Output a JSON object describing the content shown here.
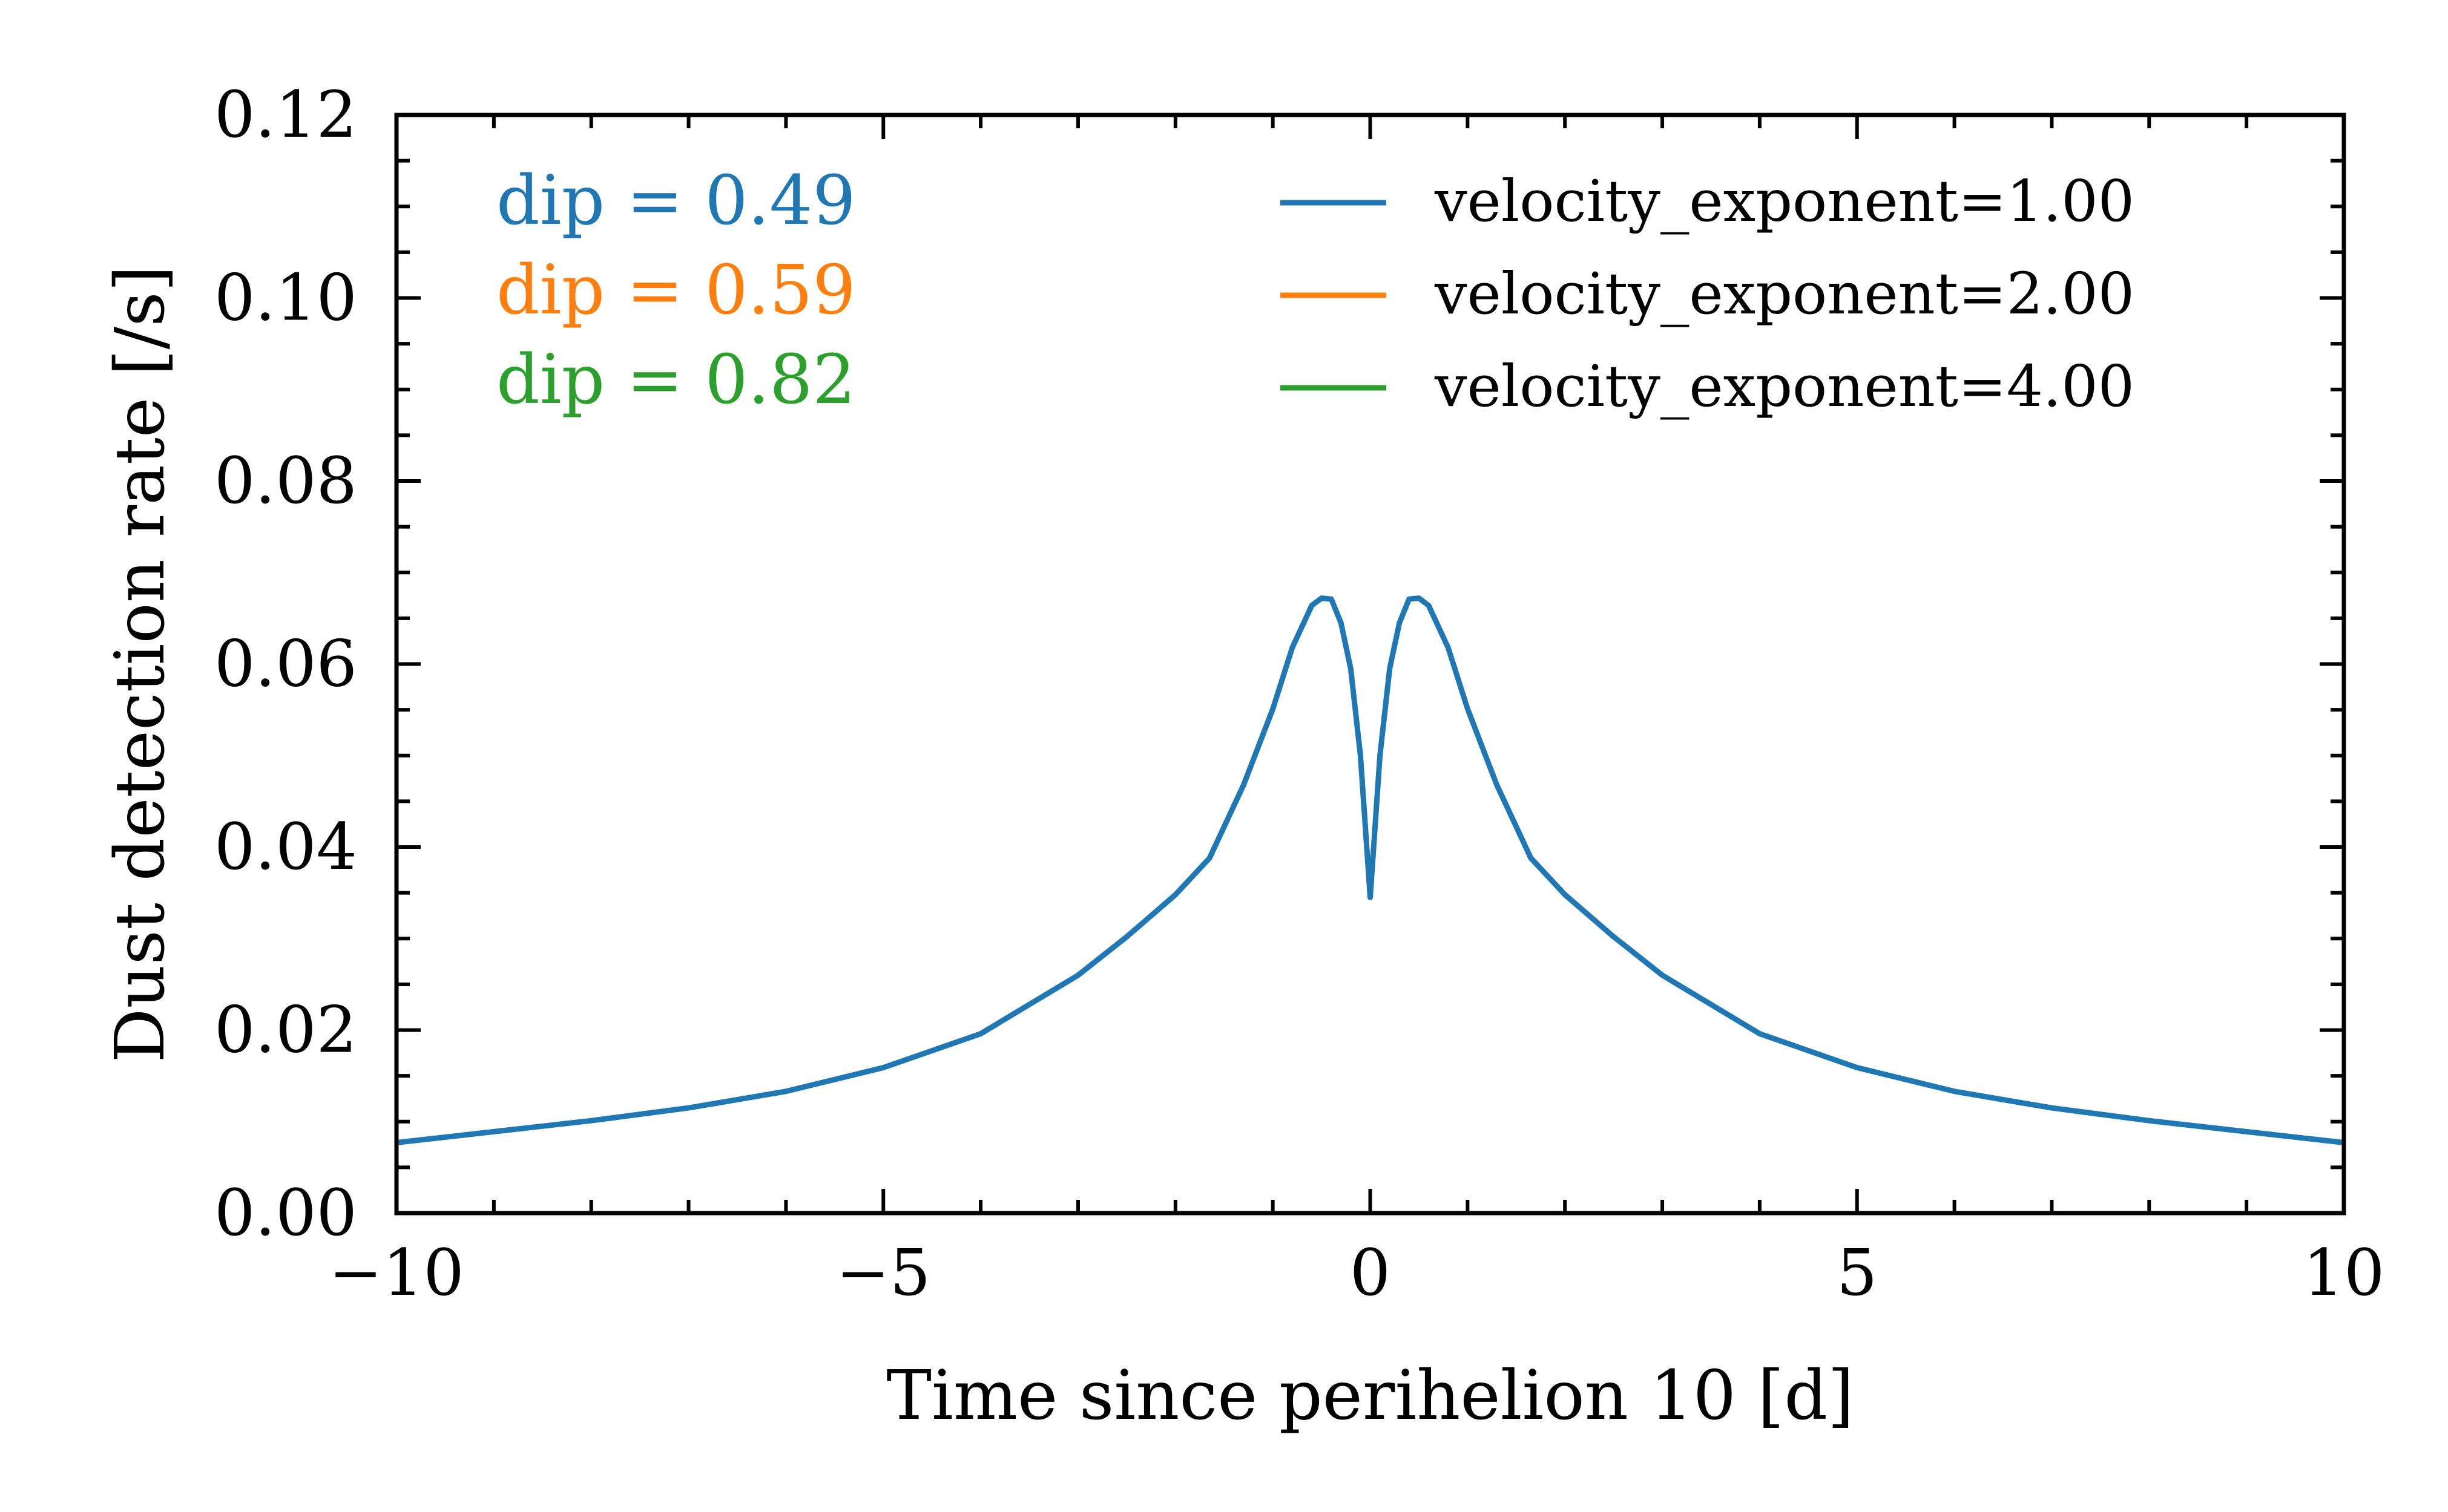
{
  "chart_data": {
    "type": "line",
    "title": "",
    "xlabel": "Time since perihelion 10 [d]",
    "ylabel": "Dust detection rate [/s]",
    "xlim": [
      -10,
      10
    ],
    "ylim": [
      0,
      0.12
    ],
    "x_ticks": [
      -10,
      -5,
      0,
      5,
      10
    ],
    "x_tick_labels": [
      "−10",
      "−5",
      "0",
      "5",
      "10"
    ],
    "y_ticks": [
      0,
      0.02,
      0.04,
      0.06,
      0.08,
      0.1,
      0.12
    ],
    "y_tick_labels": [
      "0.00",
      "0.02",
      "0.04",
      "0.06",
      "0.08",
      "0.10",
      "0.12"
    ],
    "grid": false,
    "legend_position": "top-right",
    "series": [
      {
        "name": "velocity_exponent=1.00",
        "color": "#1f77b4",
        "x": [
          -10,
          -9,
          -8,
          -7,
          -6,
          -5,
          -4,
          -3,
          -2.5,
          -2,
          -1.65,
          -1.3,
          -1,
          -0.8,
          -0.6,
          -0.5,
          -0.4,
          -0.3,
          -0.2,
          -0.1,
          0,
          0.1,
          0.2,
          0.3,
          0.4,
          0.5,
          0.6,
          0.8,
          1,
          1.3,
          1.65,
          2,
          2.5,
          3,
          4,
          5,
          6,
          7,
          8,
          9,
          10
        ],
        "y": [
          0.0077,
          0.0089,
          0.0101,
          0.0115,
          0.0133,
          0.0159,
          0.0196,
          0.026,
          0.0302,
          0.0348,
          0.0388,
          0.0468,
          0.0551,
          0.0618,
          0.0664,
          0.0672,
          0.0671,
          0.0645,
          0.0595,
          0.05,
          0.0345,
          0.05,
          0.0595,
          0.0645,
          0.0671,
          0.0672,
          0.0664,
          0.0618,
          0.0551,
          0.0468,
          0.0388,
          0.0348,
          0.0302,
          0.026,
          0.0196,
          0.0159,
          0.0133,
          0.0115,
          0.0101,
          0.0089,
          0.0077
        ]
      },
      {
        "name": "velocity_exponent=2.00",
        "color": "#ff7f0e",
        "x": [],
        "y": []
      },
      {
        "name": "velocity_exponent=4.00",
        "color": "#2ca02c",
        "x": [],
        "y": []
      }
    ],
    "annotations": [
      {
        "text": "dip = 0.49",
        "color": "#1f77b4"
      },
      {
        "text": "dip = 0.59",
        "color": "#ff7f0e"
      },
      {
        "text": "dip = 0.82",
        "color": "#2ca02c"
      }
    ]
  }
}
